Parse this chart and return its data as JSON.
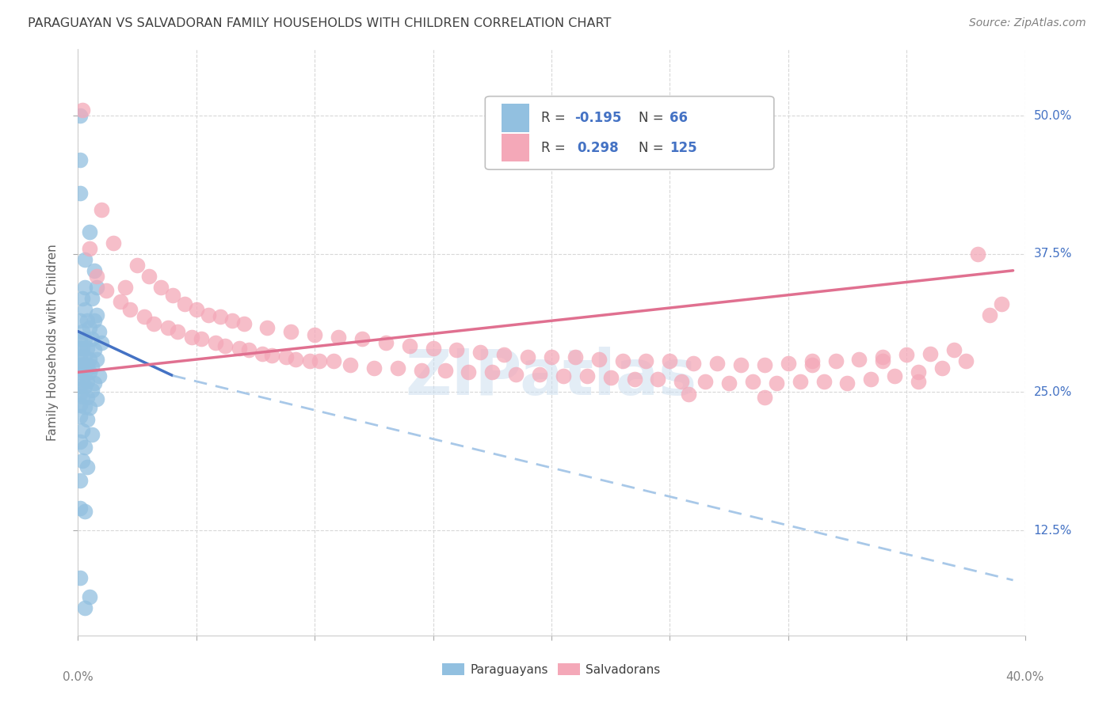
{
  "title": "PARAGUAYAN VS SALVADORAN FAMILY HOUSEHOLDS WITH CHILDREN CORRELATION CHART",
  "source": "Source: ZipAtlas.com",
  "ylabel": "Family Households with Children",
  "ytick_labels": [
    "12.5%",
    "25.0%",
    "37.5%",
    "50.0%"
  ],
  "ytick_values": [
    0.125,
    0.25,
    0.375,
    0.5
  ],
  "xlim": [
    0.0,
    0.4
  ],
  "ylim": [
    0.03,
    0.56
  ],
  "blue_scatter": [
    [
      0.001,
      0.5
    ],
    [
      0.001,
      0.46
    ],
    [
      0.001,
      0.43
    ],
    [
      0.005,
      0.395
    ],
    [
      0.003,
      0.37
    ],
    [
      0.007,
      0.36
    ],
    [
      0.003,
      0.345
    ],
    [
      0.008,
      0.345
    ],
    [
      0.002,
      0.335
    ],
    [
      0.006,
      0.335
    ],
    [
      0.003,
      0.325
    ],
    [
      0.008,
      0.32
    ],
    [
      0.001,
      0.315
    ],
    [
      0.004,
      0.315
    ],
    [
      0.007,
      0.315
    ],
    [
      0.002,
      0.305
    ],
    [
      0.005,
      0.308
    ],
    [
      0.009,
      0.305
    ],
    [
      0.001,
      0.298
    ],
    [
      0.003,
      0.298
    ],
    [
      0.006,
      0.298
    ],
    [
      0.01,
      0.295
    ],
    [
      0.001,
      0.29
    ],
    [
      0.002,
      0.29
    ],
    [
      0.004,
      0.29
    ],
    [
      0.007,
      0.288
    ],
    [
      0.001,
      0.282
    ],
    [
      0.003,
      0.282
    ],
    [
      0.005,
      0.28
    ],
    [
      0.008,
      0.28
    ],
    [
      0.001,
      0.275
    ],
    [
      0.002,
      0.275
    ],
    [
      0.004,
      0.275
    ],
    [
      0.006,
      0.273
    ],
    [
      0.001,
      0.268
    ],
    [
      0.003,
      0.268
    ],
    [
      0.005,
      0.268
    ],
    [
      0.009,
      0.265
    ],
    [
      0.002,
      0.262
    ],
    [
      0.004,
      0.26
    ],
    [
      0.007,
      0.258
    ],
    [
      0.001,
      0.255
    ],
    [
      0.003,
      0.255
    ],
    [
      0.006,
      0.252
    ],
    [
      0.001,
      0.248
    ],
    [
      0.002,
      0.246
    ],
    [
      0.004,
      0.245
    ],
    [
      0.008,
      0.244
    ],
    [
      0.001,
      0.238
    ],
    [
      0.003,
      0.237
    ],
    [
      0.005,
      0.236
    ],
    [
      0.001,
      0.228
    ],
    [
      0.004,
      0.225
    ],
    [
      0.002,
      0.215
    ],
    [
      0.006,
      0.212
    ],
    [
      0.001,
      0.205
    ],
    [
      0.003,
      0.2
    ],
    [
      0.002,
      0.188
    ],
    [
      0.004,
      0.182
    ],
    [
      0.001,
      0.17
    ],
    [
      0.001,
      0.145
    ],
    [
      0.003,
      0.142
    ],
    [
      0.001,
      0.082
    ],
    [
      0.005,
      0.065
    ],
    [
      0.003,
      0.055
    ]
  ],
  "pink_scatter": [
    [
      0.002,
      0.505
    ],
    [
      0.01,
      0.415
    ],
    [
      0.015,
      0.385
    ],
    [
      0.025,
      0.365
    ],
    [
      0.03,
      0.355
    ],
    [
      0.02,
      0.345
    ],
    [
      0.035,
      0.345
    ],
    [
      0.04,
      0.338
    ],
    [
      0.045,
      0.33
    ],
    [
      0.05,
      0.325
    ],
    [
      0.055,
      0.32
    ],
    [
      0.06,
      0.318
    ],
    [
      0.065,
      0.315
    ],
    [
      0.07,
      0.312
    ],
    [
      0.08,
      0.308
    ],
    [
      0.09,
      0.305
    ],
    [
      0.1,
      0.302
    ],
    [
      0.11,
      0.3
    ],
    [
      0.12,
      0.298
    ],
    [
      0.13,
      0.295
    ],
    [
      0.14,
      0.292
    ],
    [
      0.15,
      0.29
    ],
    [
      0.16,
      0.288
    ],
    [
      0.17,
      0.286
    ],
    [
      0.18,
      0.284
    ],
    [
      0.19,
      0.282
    ],
    [
      0.2,
      0.282
    ],
    [
      0.21,
      0.282
    ],
    [
      0.22,
      0.28
    ],
    [
      0.23,
      0.278
    ],
    [
      0.24,
      0.278
    ],
    [
      0.25,
      0.278
    ],
    [
      0.26,
      0.276
    ],
    [
      0.27,
      0.276
    ],
    [
      0.28,
      0.275
    ],
    [
      0.29,
      0.275
    ],
    [
      0.3,
      0.276
    ],
    [
      0.31,
      0.278
    ],
    [
      0.32,
      0.278
    ],
    [
      0.33,
      0.28
    ],
    [
      0.34,
      0.282
    ],
    [
      0.35,
      0.284
    ],
    [
      0.36,
      0.285
    ],
    [
      0.37,
      0.288
    ],
    [
      0.005,
      0.38
    ],
    [
      0.008,
      0.355
    ],
    [
      0.012,
      0.342
    ],
    [
      0.018,
      0.332
    ],
    [
      0.022,
      0.325
    ],
    [
      0.028,
      0.318
    ],
    [
      0.032,
      0.312
    ],
    [
      0.038,
      0.308
    ],
    [
      0.042,
      0.305
    ],
    [
      0.048,
      0.3
    ],
    [
      0.052,
      0.298
    ],
    [
      0.058,
      0.295
    ],
    [
      0.062,
      0.292
    ],
    [
      0.068,
      0.29
    ],
    [
      0.072,
      0.288
    ],
    [
      0.078,
      0.285
    ],
    [
      0.082,
      0.283
    ],
    [
      0.088,
      0.282
    ],
    [
      0.092,
      0.28
    ],
    [
      0.098,
      0.278
    ],
    [
      0.102,
      0.278
    ],
    [
      0.108,
      0.278
    ],
    [
      0.115,
      0.275
    ],
    [
      0.125,
      0.272
    ],
    [
      0.135,
      0.272
    ],
    [
      0.145,
      0.27
    ],
    [
      0.155,
      0.27
    ],
    [
      0.165,
      0.268
    ],
    [
      0.175,
      0.268
    ],
    [
      0.185,
      0.266
    ],
    [
      0.195,
      0.266
    ],
    [
      0.205,
      0.265
    ],
    [
      0.215,
      0.265
    ],
    [
      0.225,
      0.263
    ],
    [
      0.235,
      0.262
    ],
    [
      0.245,
      0.262
    ],
    [
      0.255,
      0.26
    ],
    [
      0.265,
      0.26
    ],
    [
      0.275,
      0.258
    ],
    [
      0.285,
      0.26
    ],
    [
      0.295,
      0.258
    ],
    [
      0.305,
      0.26
    ],
    [
      0.315,
      0.26
    ],
    [
      0.325,
      0.258
    ],
    [
      0.335,
      0.262
    ],
    [
      0.345,
      0.265
    ],
    [
      0.355,
      0.268
    ],
    [
      0.365,
      0.272
    ],
    [
      0.375,
      0.278
    ],
    [
      0.38,
      0.375
    ],
    [
      0.258,
      0.248
    ],
    [
      0.29,
      0.245
    ],
    [
      0.31,
      0.275
    ],
    [
      0.34,
      0.278
    ],
    [
      0.355,
      0.26
    ],
    [
      0.385,
      0.32
    ],
    [
      0.39,
      0.33
    ]
  ],
  "blue_line_solid": [
    [
      0.0,
      0.305
    ],
    [
      0.04,
      0.265
    ]
  ],
  "blue_line_dashed": [
    [
      0.04,
      0.265
    ],
    [
      0.395,
      0.08
    ]
  ],
  "pink_line": [
    [
      0.0,
      0.268
    ],
    [
      0.395,
      0.36
    ]
  ],
  "watermark": "ZIPatlas",
  "blue_color": "#92c0e0",
  "pink_color": "#f4a8b8",
  "blue_line_color": "#4472c4",
  "pink_line_color": "#e07090",
  "dashed_line_color": "#a8c8e8",
  "grid_color": "#d8d8d8",
  "title_color": "#404040",
  "source_color": "#808080",
  "ylabel_color": "#606060",
  "tick_color": "#808080",
  "right_tick_color": "#4472c4"
}
